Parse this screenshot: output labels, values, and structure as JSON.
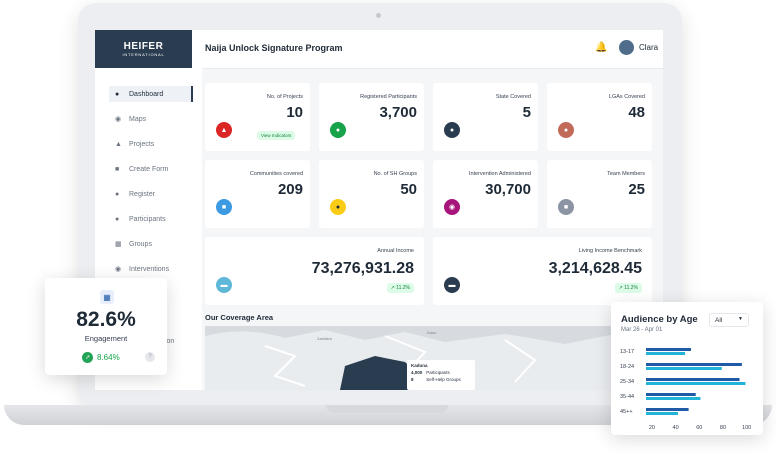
{
  "topbar": {
    "logo_text": "HEIFER",
    "logo_subtext": "INTERNATIONAL",
    "program_title": "Naija Unlock Signature Program",
    "username": "Clara"
  },
  "sidebar": {
    "items": [
      {
        "label": "Dashboard",
        "icon": "home-icon"
      },
      {
        "label": "Maps",
        "icon": "map-icon"
      },
      {
        "label": "Projects",
        "icon": "projects-icon"
      },
      {
        "label": "Create Form",
        "icon": "form-icon"
      },
      {
        "label": "Register",
        "icon": "register-icon"
      },
      {
        "label": "Participants",
        "icon": "participants-icon"
      },
      {
        "label": "Groups",
        "icon": "groups-icon"
      },
      {
        "label": "Interventions",
        "icon": "interventions-icon"
      }
    ],
    "hidden_item_fragment": "tion"
  },
  "stats": [
    {
      "label": "No. of Projects",
      "value": "10",
      "color": "#dc2626"
    },
    {
      "label": "Registered Participants",
      "value": "3,700",
      "color": "#16a34a"
    },
    {
      "label": "State Covered",
      "value": "5",
      "color": "#2a3c4f"
    },
    {
      "label": "LGAs Covered",
      "value": "48",
      "color": "#c26a5a"
    },
    {
      "label": "Communities covered",
      "value": "209",
      "color": "#3b9ae1"
    },
    {
      "label": "No. of SH Groups",
      "value": "50",
      "color": "#facc15"
    },
    {
      "label": "Intervention Administered",
      "value": "30,700",
      "color": "#a8157a"
    },
    {
      "label": "Team Members",
      "value": "25",
      "color": "#8b94a3"
    }
  ],
  "view_indicators_label": "View Indicators",
  "income": {
    "annual_label": "Annual Income",
    "annual_value": "73,276,931.28",
    "annual_trend": "11.2%",
    "living_label": "Living Income Benchmark",
    "living_value": "3,214,628.45",
    "living_trend": "11.2%"
  },
  "map": {
    "title": "Our Coverage Area",
    "region_labels": [
      "Zamfara",
      "Kano",
      "Kaduna"
    ],
    "tooltip": {
      "state": "Kaduna",
      "participants_value": "4,000",
      "participants_label": "Participants",
      "groups_value": "8",
      "groups_label": "Self-Help Groups"
    }
  },
  "engagement": {
    "value": "82.6%",
    "label": "Engagement",
    "change": "8.64%"
  },
  "audience": {
    "title": "Audience by Age",
    "range": "Mar 26 - Apr 01",
    "filter": "All"
  },
  "chart_data": {
    "type": "bar",
    "categories": [
      "13-17",
      "18-24",
      "25-34",
      "35-44",
      "45++"
    ],
    "series": [
      {
        "values": [
          53,
          96,
          94,
          57,
          51
        ]
      },
      {
        "values": [
          48,
          79,
          99,
          61,
          42
        ]
      }
    ],
    "x_ticks": [
      "20",
      "40",
      "60",
      "80",
      "100"
    ],
    "xlim": [
      15,
      102
    ],
    "colors": [
      "#1f5aa6",
      "#22b4d8"
    ],
    "legend": "none",
    "grid": false
  }
}
